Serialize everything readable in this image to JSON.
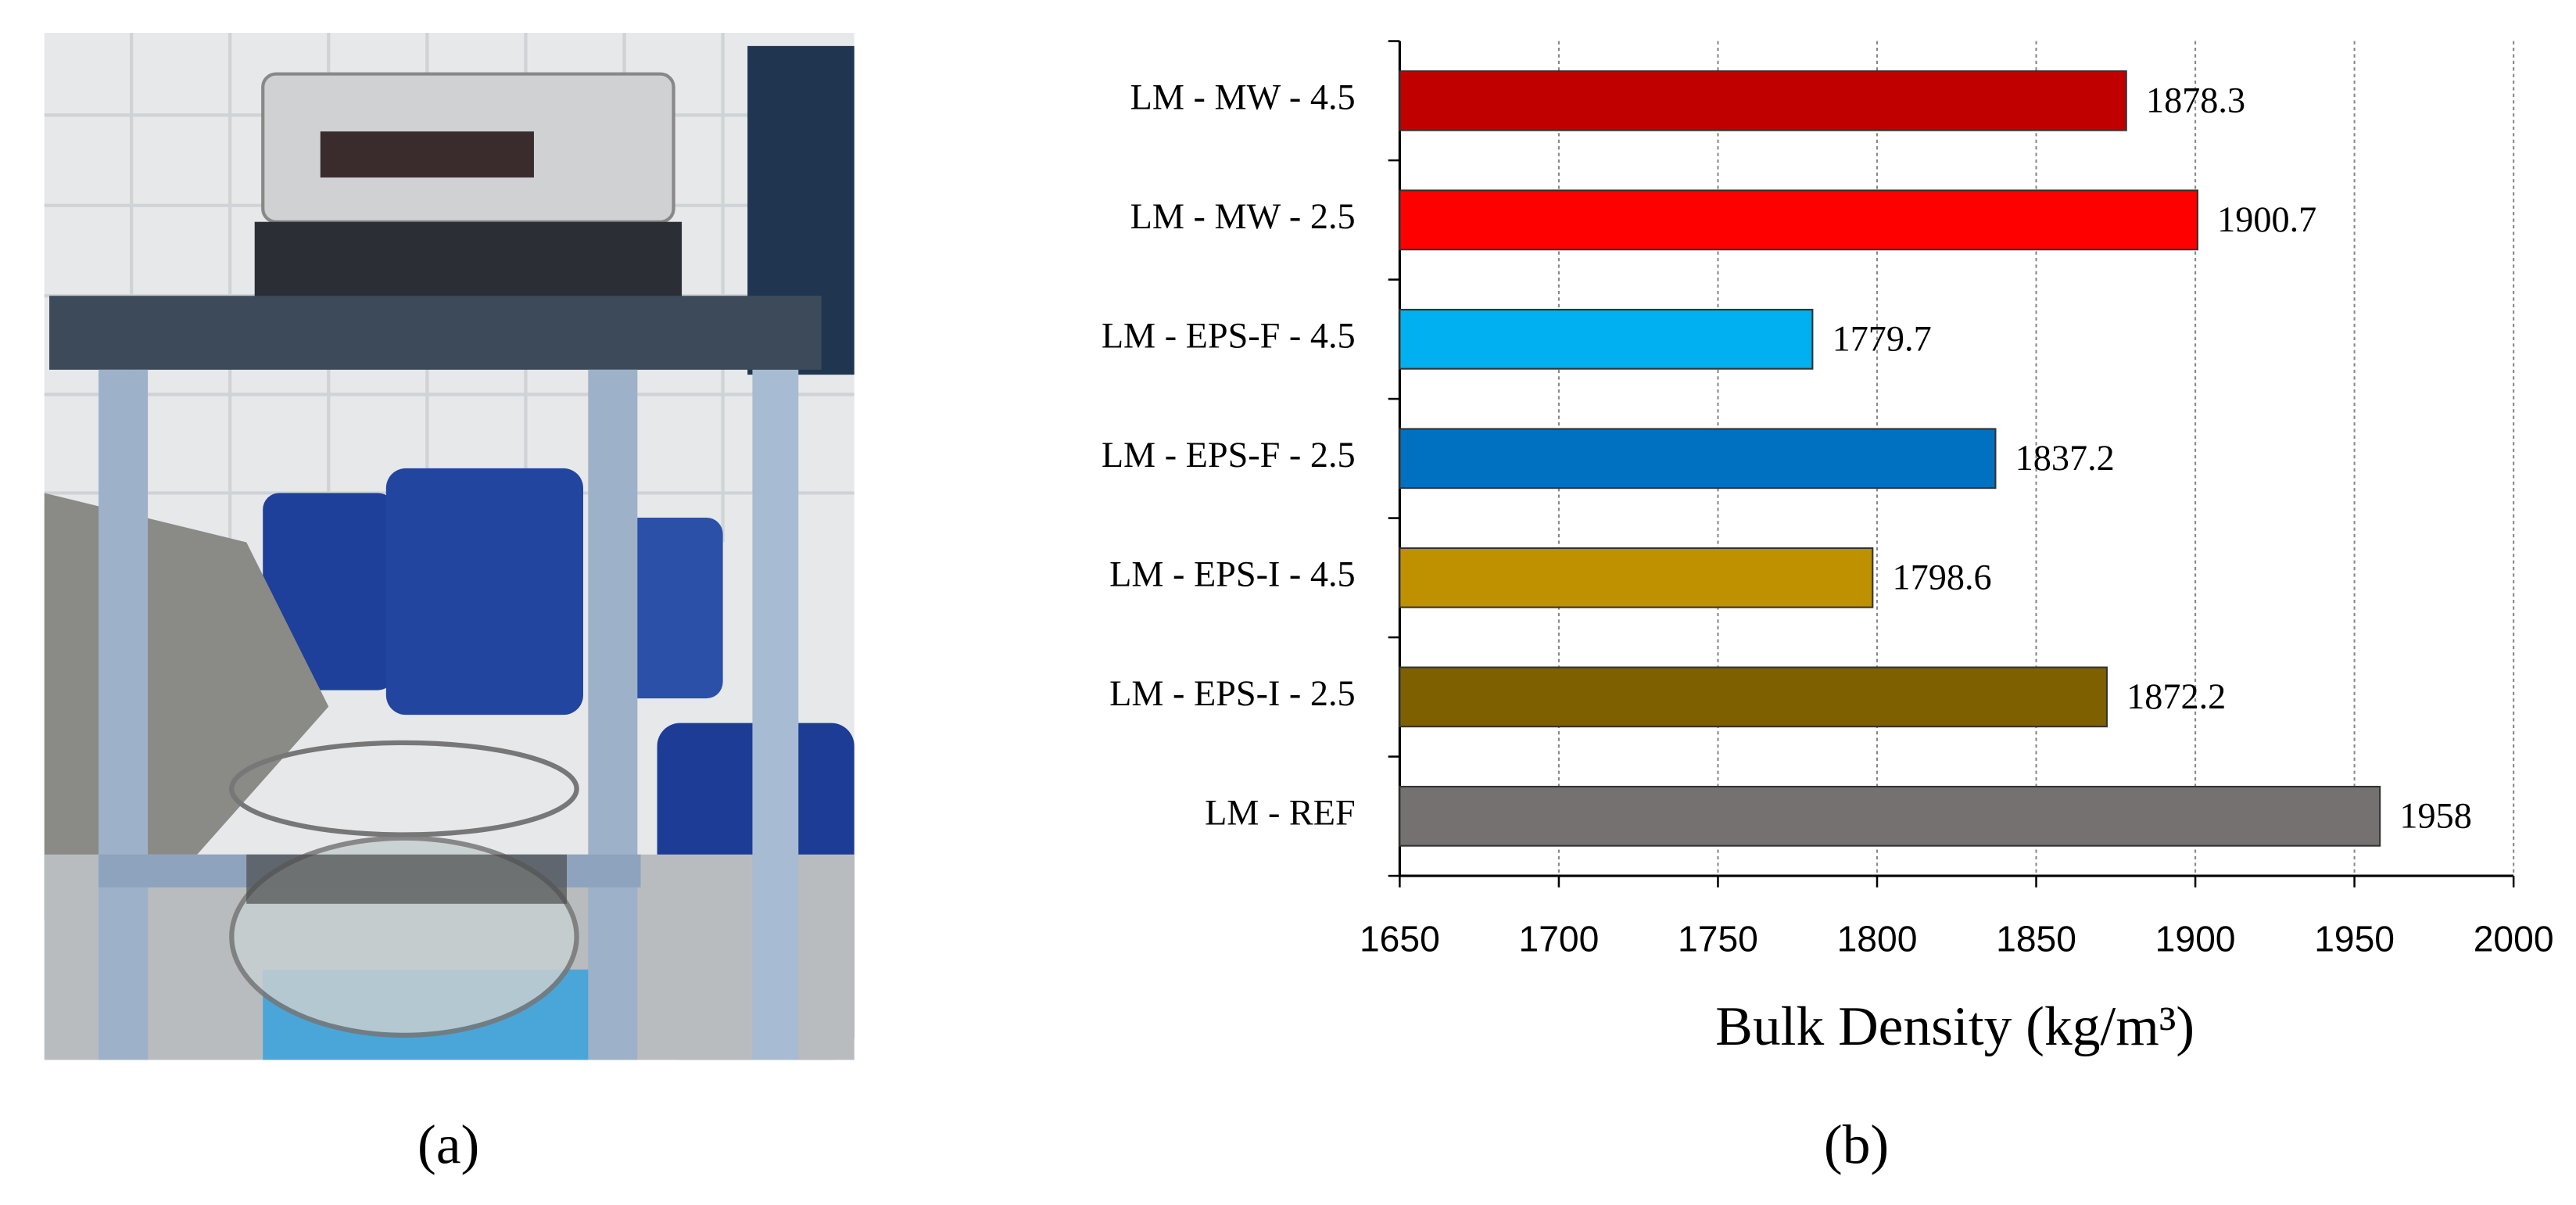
{
  "chart_data": {
    "type": "bar",
    "orientation": "horizontal",
    "x_label": "Bulk Density (kg/m³)",
    "categories": [
      "LM - MW - 4.5",
      "LM - MW - 2.5",
      "LM - EPS-F - 4.5",
      "LM - EPS-F - 2.5",
      "LM - EPS-I - 4.5",
      "LM - EPS-I - 2.5",
      "LM - REF"
    ],
    "values": [
      1878.3,
      1900.7,
      1779.7,
      1837.2,
      1798.6,
      1872.2,
      1958
    ],
    "colors": [
      "#c00000",
      "#ff0000",
      "#00b0f0",
      "#0070c0",
      "#bf9000",
      "#7f6000",
      "#767171"
    ],
    "xlim": [
      1650,
      2000
    ],
    "xticks": [
      1650,
      1700,
      1750,
      1800,
      1850,
      1900,
      1950,
      2000
    ],
    "grid": true
  },
  "panel_labels": [
    "(a)",
    "(b)"
  ]
}
